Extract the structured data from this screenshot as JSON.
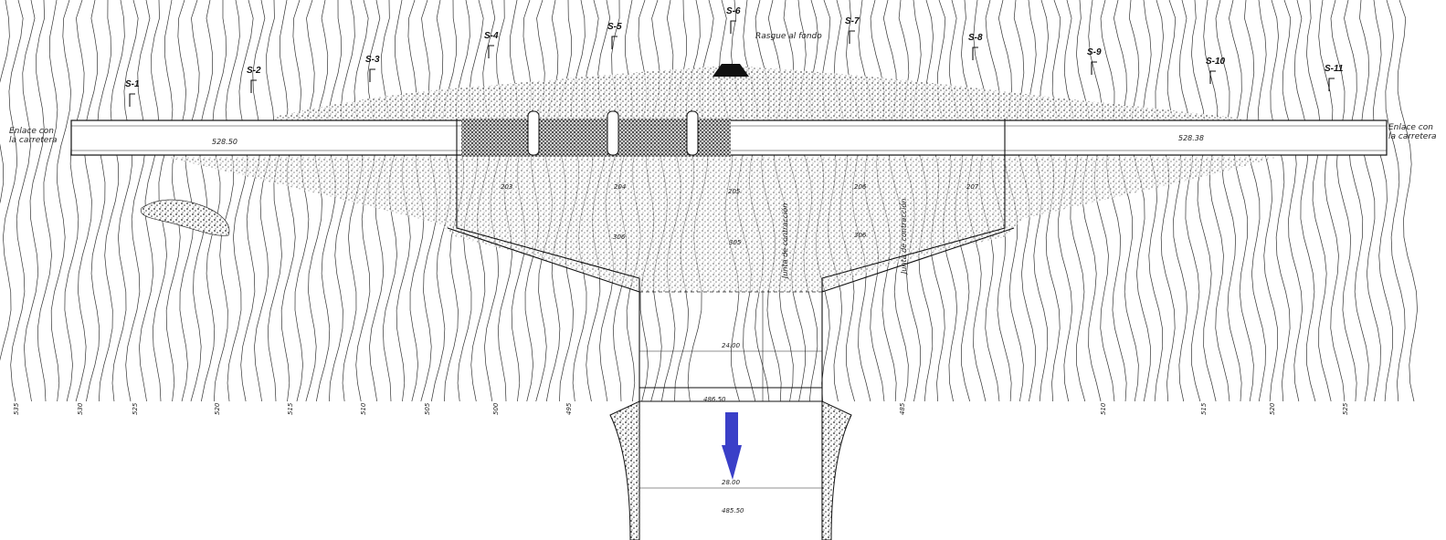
{
  "sections": [
    "S-1",
    "S-2",
    "S-3",
    "S-4",
    "S-5",
    "S-6",
    "S-7",
    "S-8",
    "S-9",
    "S-10",
    "S-11"
  ],
  "labels": {
    "road_link_left": [
      "Enlace con",
      "la carretera"
    ],
    "road_link_right": [
      "Enlace con",
      "la carretera"
    ],
    "crest_note": "Rasgue al fondo",
    "joint_left": "Junta de contracción",
    "joint_right": "Junta de contracción",
    "crest_elev_left": "528.50",
    "crest_elev_right": "528.38",
    "basin_elev_1": "486.50",
    "basin_elev_2": "485.50",
    "width_1": "24.00",
    "width_2": "28.00",
    "block_codes": [
      "203",
      "204",
      "205",
      "206",
      "207",
      "306",
      "305",
      "306"
    ],
    "contour_values": [
      "535",
      "530",
      "525",
      "520",
      "515",
      "510",
      "505",
      "500",
      "495",
      "485",
      "510",
      "515",
      "520",
      "525"
    ]
  },
  "colors": {
    "arrow": "#3a3fc8",
    "ink": "#111111",
    "paper": "#ffffff"
  },
  "icons": [
    "flow-direction-arrow-icon",
    "section-marker-icon"
  ]
}
